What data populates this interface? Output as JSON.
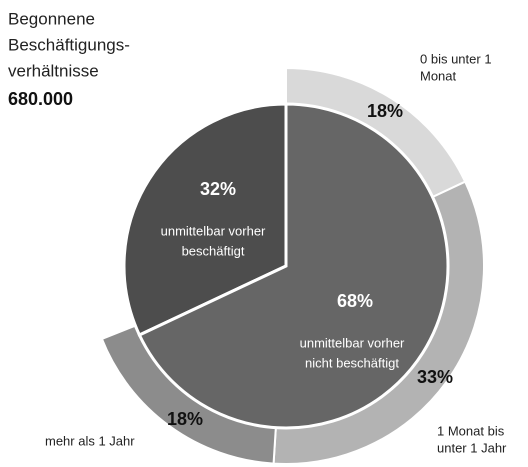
{
  "chart_data": {
    "type": "pie",
    "title": [
      "Begonnene",
      "Beschäftigungs-",
      "verhältnisse"
    ],
    "total": {
      "value": 680000,
      "label": "680.000"
    },
    "inner": {
      "categories": [
        [
          "unmittelbar vorher",
          "beschäftigt"
        ],
        [
          "unmittelbar vorher",
          "nicht beschäftigt"
        ]
      ],
      "values": [
        32,
        68
      ],
      "value_labels": [
        "32%",
        "68%"
      ],
      "colors": [
        "#4d4d4d",
        "#666666"
      ]
    },
    "outer": {
      "categories": [
        [
          "0 bis unter 1",
          "Monat"
        ],
        [
          "1 Monat bis",
          "unter 1 Jahr"
        ],
        [
          "mehr als 1 Jahr"
        ]
      ],
      "values": [
        18,
        33,
        18
      ],
      "value_labels": [
        "18%",
        "33%",
        "18%"
      ],
      "colors": [
        "#d9d9d9",
        "#b3b3b3",
        "#8c8c8c"
      ]
    }
  }
}
